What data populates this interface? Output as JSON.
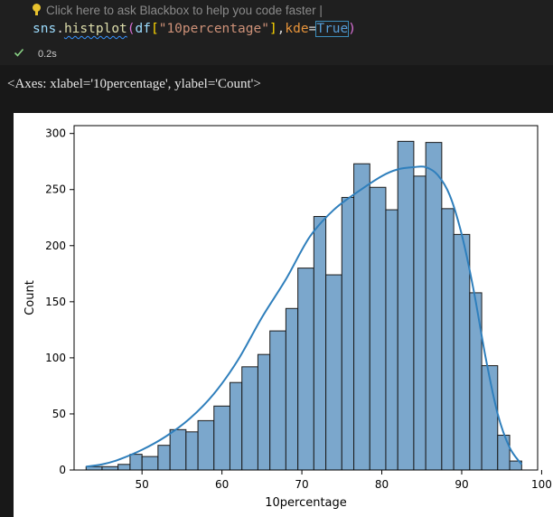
{
  "cell": {
    "hint_text": "Click here to ask Blackbox to help you code faster |",
    "code": {
      "fn": "sns",
      "dot": ".",
      "method": "histplot",
      "open": "(",
      "df": "df",
      "lbr": "[",
      "col": "\"10percentage\"",
      "rbr": "]",
      "comma": ",",
      "param": "kde",
      "eq": "=",
      "kw": "True",
      "close": ")"
    },
    "exec_time": "0.2s",
    "status_color": "#89d185"
  },
  "output": {
    "repr": "<Axes: xlabel='10percentage', ylabel='Count'>"
  },
  "chart_data": {
    "type": "bar",
    "xlabel": "10percentage",
    "ylabel": "Count",
    "xlim": [
      41.5,
      99.5
    ],
    "ylim": [
      0,
      307
    ],
    "x_ticks": [
      50,
      60,
      70,
      80,
      90,
      100
    ],
    "y_ticks": [
      0,
      50,
      100,
      150,
      200,
      250,
      300
    ],
    "bar_color": "#7ba7cc",
    "edge_color": "#1a1a1a",
    "kde_color": "#2f7fbc",
    "bins": [
      {
        "x0": 43.0,
        "x1": 45.0,
        "count": 3
      },
      {
        "x0": 45.0,
        "x1": 47.0,
        "count": 3
      },
      {
        "x0": 47.0,
        "x1": 48.5,
        "count": 5
      },
      {
        "x0": 48.5,
        "x1": 50.0,
        "count": 14
      },
      {
        "x0": 50.0,
        "x1": 52.0,
        "count": 12
      },
      {
        "x0": 52.0,
        "x1": 53.5,
        "count": 22
      },
      {
        "x0": 53.5,
        "x1": 55.5,
        "count": 36
      },
      {
        "x0": 55.5,
        "x1": 57.0,
        "count": 34
      },
      {
        "x0": 57.0,
        "x1": 59.0,
        "count": 44
      },
      {
        "x0": 59.0,
        "x1": 61.0,
        "count": 57
      },
      {
        "x0": 61.0,
        "x1": 62.5,
        "count": 78
      },
      {
        "x0": 62.5,
        "x1": 64.5,
        "count": 92
      },
      {
        "x0": 64.5,
        "x1": 66.0,
        "count": 103
      },
      {
        "x0": 66.0,
        "x1": 68.0,
        "count": 124
      },
      {
        "x0": 68.0,
        "x1": 69.5,
        "count": 144
      },
      {
        "x0": 69.5,
        "x1": 71.5,
        "count": 180
      },
      {
        "x0": 71.5,
        "x1": 73.0,
        "count": 226
      },
      {
        "x0": 73.0,
        "x1": 75.0,
        "count": 174
      },
      {
        "x0": 75.0,
        "x1": 76.5,
        "count": 243
      },
      {
        "x0": 76.5,
        "x1": 78.5,
        "count": 273
      },
      {
        "x0": 78.5,
        "x1": 80.5,
        "count": 252
      },
      {
        "x0": 80.5,
        "x1": 82.0,
        "count": 232
      },
      {
        "x0": 82.0,
        "x1": 84.0,
        "count": 293
      },
      {
        "x0": 84.0,
        "x1": 85.5,
        "count": 262
      },
      {
        "x0": 85.5,
        "x1": 87.5,
        "count": 292
      },
      {
        "x0": 87.5,
        "x1": 89.0,
        "count": 233
      },
      {
        "x0": 89.0,
        "x1": 91.0,
        "count": 210
      },
      {
        "x0": 91.0,
        "x1": 92.5,
        "count": 158
      },
      {
        "x0": 92.5,
        "x1": 94.5,
        "count": 93
      },
      {
        "x0": 94.5,
        "x1": 96.0,
        "count": 31
      },
      {
        "x0": 96.0,
        "x1": 97.5,
        "count": 8
      }
    ],
    "kde": {
      "x": [
        43,
        45,
        47,
        50,
        53,
        56,
        59,
        62,
        65,
        68,
        71,
        74,
        77,
        80,
        82,
        84,
        85.5,
        87,
        88.5,
        90,
        91.5,
        93,
        94.5,
        96,
        97.5
      ],
      "y": [
        3,
        5,
        9,
        18,
        30,
        46,
        68,
        98,
        136,
        170,
        208,
        232,
        248,
        262,
        268,
        270,
        270,
        263,
        245,
        210,
        160,
        100,
        50,
        20,
        5
      ]
    }
  }
}
